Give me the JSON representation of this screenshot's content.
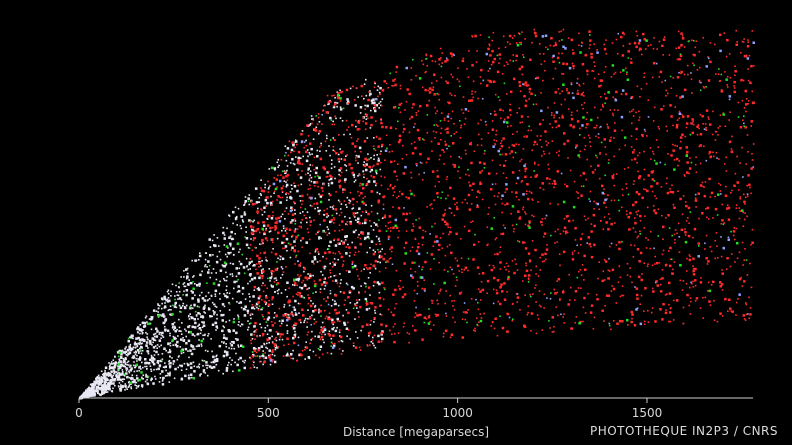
{
  "chart_data": {
    "type": "scatter",
    "title": "",
    "xlabel": "Distance [megaparsecs]",
    "ylabel": "",
    "xlim": [
      0,
      1780
    ],
    "x_ticks": [
      0,
      500,
      1000,
      1500
    ],
    "x_tick_labels": [
      "0",
      "500",
      "1000",
      "1500"
    ],
    "grid": false,
    "legend": "none",
    "series": [
      {
        "color": "#e8e8f4",
        "distance_range": [
          0,
          800
        ]
      },
      {
        "color": "#ff2a2a",
        "distance_range": [
          450,
          1780
        ]
      },
      {
        "color": "#22dd22",
        "distance_range": [
          100,
          1780
        ]
      },
      {
        "color": "#8fa0ff",
        "distance_range": [
          500,
          1780
        ]
      }
    ],
    "credit": "PHOTOTHEQUE IN2P3 / CNRS"
  },
  "colors": {
    "background": "#000000",
    "axis": "#d0d0d0"
  }
}
